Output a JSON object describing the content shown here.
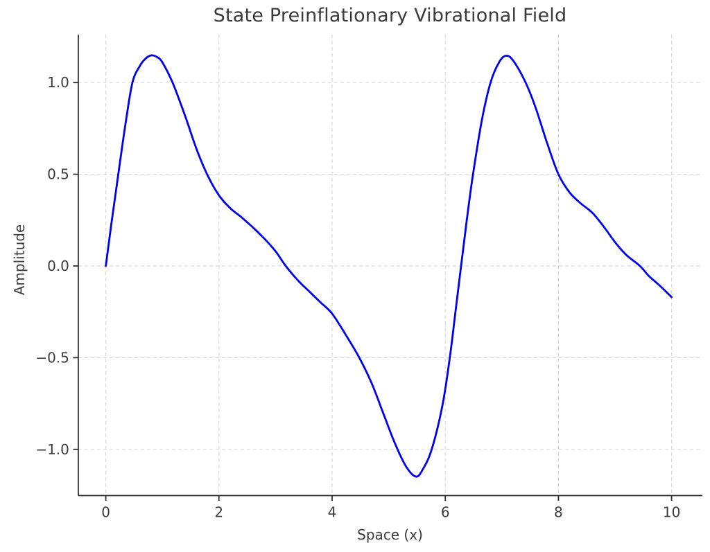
{
  "chart_data": {
    "type": "line",
    "title": "State Preinflationary Vibrational Field",
    "xlabel": "Space (x)",
    "ylabel": "Amplitude",
    "xlim": [
      -0.5,
      10.55
    ],
    "ylim": [
      -1.263,
      1.263
    ],
    "x_ticks": [
      0,
      2,
      4,
      6,
      8,
      10
    ],
    "x_tick_labels": [
      "0",
      "2",
      "4",
      "6",
      "8",
      "10"
    ],
    "y_ticks": [
      -1.0,
      -0.5,
      0.0,
      0.5,
      1.0
    ],
    "y_tick_labels": [
      "−1.0",
      "−0.5",
      "0.0",
      "0.5",
      "1.0"
    ],
    "grid": true,
    "grid_style": "dashed",
    "legend": "none",
    "colors": {
      "line": "#0000f2",
      "grid": "#d7d7d7",
      "spine": "#2e2e2e",
      "text": "#3b3b3b",
      "background": "#ffffff"
    },
    "series": [
      {
        "name": "vibrational-field",
        "color": "#0000f2",
        "line_width": 2.8,
        "x": [
          0.0,
          0.1,
          0.22,
          0.35,
          0.47,
          0.6,
          0.7,
          0.8,
          0.9,
          1.0,
          1.18,
          1.4,
          1.6,
          1.79,
          2.0,
          2.2,
          2.4,
          2.6,
          2.8,
          3.0,
          3.18,
          3.4,
          3.6,
          3.8,
          4.0,
          4.24,
          4.48,
          4.7,
          4.9,
          5.1,
          5.3,
          5.48,
          5.6,
          5.76,
          5.95,
          6.08,
          6.18,
          6.28,
          6.38,
          6.49,
          6.65,
          6.8,
          6.95,
          7.07,
          7.2,
          7.42,
          7.6,
          7.8,
          8.0,
          8.2,
          8.4,
          8.6,
          8.8,
          9.0,
          9.2,
          9.44,
          9.6,
          9.8,
          10.0
        ],
        "y": [
          0.0,
          0.235,
          0.5,
          0.78,
          1.0,
          1.09,
          1.13,
          1.148,
          1.14,
          1.11,
          1.0,
          0.82,
          0.64,
          0.5,
          0.385,
          0.315,
          0.265,
          0.21,
          0.15,
          0.08,
          0.0,
          -0.08,
          -0.14,
          -0.2,
          -0.26,
          -0.375,
          -0.5,
          -0.64,
          -0.8,
          -0.96,
          -1.09,
          -1.148,
          -1.11,
          -1.0,
          -0.76,
          -0.5,
          -0.25,
          0.0,
          0.25,
          0.5,
          0.8,
          1.0,
          1.11,
          1.146,
          1.12,
          1.0,
          0.86,
          0.67,
          0.5,
          0.4,
          0.34,
          0.29,
          0.215,
          0.13,
          0.06,
          0.0,
          -0.055,
          -0.11,
          -0.17
        ]
      }
    ]
  }
}
